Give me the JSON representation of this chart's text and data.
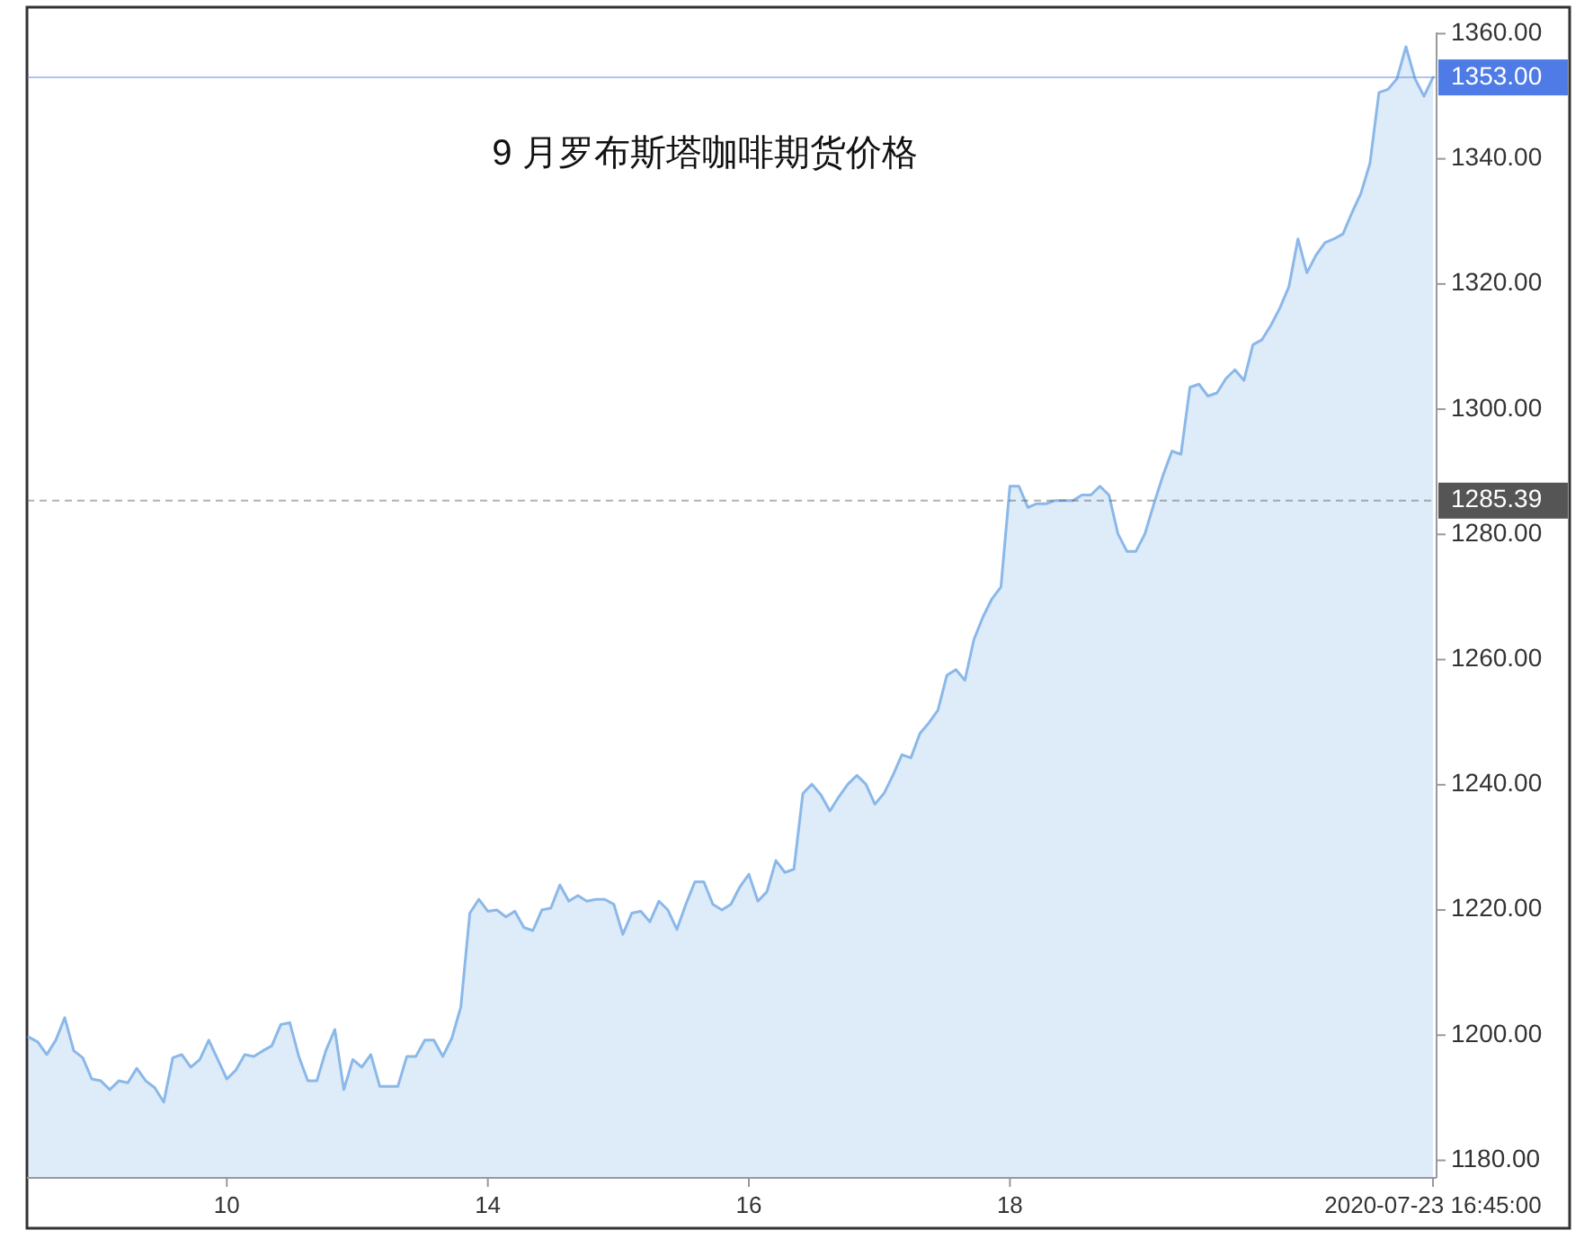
{
  "chart_data": {
    "type": "area",
    "title": "9 月罗布斯塔咖啡期货价格",
    "color": "#8ab8e8",
    "categories": [
      null,
      null,
      null,
      null,
      null,
      null,
      null,
      null,
      null,
      null,
      null,
      null,
      null,
      null,
      null,
      null,
      null,
      null,
      null,
      null,
      null,
      null,
      "10",
      null,
      null,
      null,
      null,
      null,
      null,
      null,
      null,
      null,
      null,
      null,
      null,
      null,
      null,
      null,
      null,
      null,
      null,
      null,
      null,
      null,
      null,
      null,
      null,
      null,
      null,
      null,
      null,
      "14",
      null,
      null,
      null,
      null,
      null,
      null,
      null,
      null,
      null,
      null,
      null,
      null,
      null,
      null,
      null,
      null,
      null,
      null,
      null,
      null,
      null,
      null,
      null,
      null,
      null,
      null,
      null,
      null,
      "16",
      null,
      null,
      null,
      null,
      null,
      null,
      null,
      null,
      null,
      null,
      null,
      null,
      null,
      null,
      null,
      null,
      null,
      null,
      null,
      null,
      null,
      null,
      null,
      null,
      null,
      null,
      null,
      null,
      "18",
      null,
      null,
      null,
      null,
      null,
      null,
      null,
      null,
      null,
      null,
      null,
      null,
      null,
      null,
      null,
      null,
      null,
      null,
      null,
      null,
      null,
      null,
      null,
      null,
      null,
      null,
      null,
      null,
      null,
      null,
      null,
      null,
      null,
      null,
      null,
      null,
      null,
      null,
      null,
      null,
      null,
      null,
      null,
      null,
      null,
      null,
      "2020-07-23 16:45:00"
    ],
    "values": [
      1199.7,
      1198.9,
      1196.9,
      1199.2,
      1202.8,
      1197.5,
      1196.4,
      1193.0,
      1192.7,
      1191.3,
      1192.7,
      1192.4,
      1194.7,
      1192.7,
      1191.6,
      1189.3,
      1196.4,
      1196.9,
      1194.9,
      1196.1,
      1199.2,
      1196.1,
      1193.0,
      1194.4,
      1196.9,
      1196.6,
      1197.5,
      1198.3,
      1201.7,
      1202.0,
      1196.6,
      1192.7,
      1192.7,
      1197.5,
      1200.9,
      1191.3,
      1196.1,
      1194.9,
      1196.9,
      1191.8,
      1191.8,
      1191.8,
      1196.6,
      1196.6,
      1199.2,
      1199.2,
      1196.6,
      1199.5,
      1204.5,
      1219.5,
      1221.7,
      1219.8,
      1220.0,
      1218.9,
      1219.8,
      1217.2,
      1216.7,
      1220.0,
      1220.3,
      1224.0,
      1221.4,
      1222.3,
      1221.4,
      1221.7,
      1221.7,
      1220.9,
      1216.1,
      1219.5,
      1219.8,
      1218.1,
      1221.4,
      1220.0,
      1216.9,
      1220.9,
      1224.5,
      1224.5,
      1220.9,
      1220.0,
      1220.9,
      1223.7,
      1225.7,
      1221.4,
      1222.9,
      1227.9,
      1226.0,
      1226.5,
      1238.6,
      1240.1,
      1238.4,
      1235.8,
      1238.1,
      1240.1,
      1241.5,
      1240.1,
      1236.9,
      1238.6,
      1241.5,
      1244.8,
      1244.3,
      1248.2,
      1249.9,
      1251.9,
      1257.5,
      1258.4,
      1256.7,
      1263.2,
      1266.8,
      1269.7,
      1271.6,
      1287.7,
      1287.7,
      1284.3,
      1284.9,
      1284.9,
      1285.4,
      1285.4,
      1285.4,
      1286.3,
      1286.3,
      1287.7,
      1286.3,
      1280.1,
      1277.3,
      1277.3,
      1280.1,
      1284.9,
      1289.4,
      1293.3,
      1292.8,
      1303.5,
      1304.0,
      1302.1,
      1302.6,
      1304.9,
      1306.3,
      1304.6,
      1310.3,
      1311.1,
      1313.4,
      1316.2,
      1319.6,
      1327.2,
      1321.8,
      1324.6,
      1326.6,
      1327.2,
      1328.0,
      1331.4,
      1334.5,
      1339.3,
      1350.6,
      1351.1,
      1352.8,
      1357.9,
      1352.8,
      1350.0,
      1353.0
    ],
    "ylim": [
      1177.2,
      1360.2
    ],
    "yticks": [
      {
        "value": 1180,
        "label": "1180.00"
      },
      {
        "value": 1200,
        "label": "1200.00"
      },
      {
        "value": 1220,
        "label": "1220.00"
      },
      {
        "value": 1240,
        "label": "1240.00"
      },
      {
        "value": 1260,
        "label": "1260.00"
      },
      {
        "value": 1280,
        "label": "1280.00"
      },
      {
        "value": 1300,
        "label": "1300.00"
      },
      {
        "value": 1320,
        "label": "1320.00"
      },
      {
        "value": 1340,
        "label": "1340.00"
      },
      {
        "value": 1360,
        "label": "1360.00"
      }
    ],
    "ref_lines": [
      {
        "axis": "y",
        "value": 1353,
        "label": "1353.00",
        "color": "#4f7be6",
        "line_style": "solid"
      },
      {
        "axis": "y",
        "value": 1285.39,
        "label": "1285.39",
        "color": "#555555",
        "line_style": "dashed"
      }
    ]
  }
}
